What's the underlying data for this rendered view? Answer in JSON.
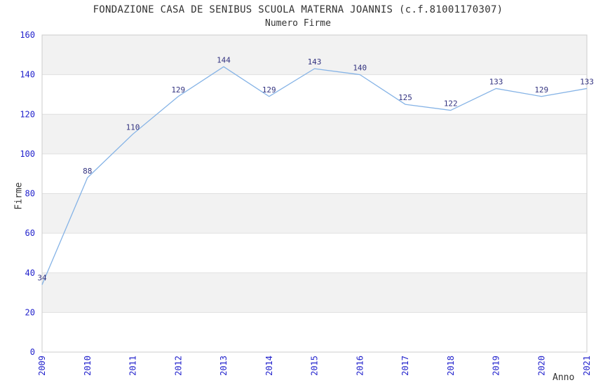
{
  "page": {
    "title": "FONDAZIONE CASA DE SENIBUS SCUOLA MATERNA JOANNIS (c.f.81001170307)",
    "subtitle": "Numero Firme"
  },
  "chart_data": {
    "type": "line",
    "title": "FONDAZIONE CASA DE SENIBUS SCUOLA MATERNA JOANNIS (c.f.81001170307)",
    "subtitle": "Numero Firme",
    "xlabel": "Anno",
    "ylabel": "Firme",
    "categories": [
      "2009",
      "2010",
      "2011",
      "2012",
      "2013",
      "2014",
      "2015",
      "2016",
      "2017",
      "2018",
      "2019",
      "2020",
      "2021"
    ],
    "values": [
      34,
      88,
      110,
      129,
      144,
      129,
      143,
      140,
      125,
      122,
      133,
      129,
      133
    ],
    "ylim": [
      0,
      160
    ],
    "ytick_step": 20,
    "yticks": [
      0,
      20,
      40,
      60,
      80,
      100,
      120,
      140,
      160
    ],
    "legend": "none",
    "grid": "alternating-horizontal-bands",
    "data_labels_shown": true,
    "x_tick_rotation_deg": 90,
    "colors": {
      "line": "#85b3e6",
      "tick_label": "#2222cc",
      "data_label": "#333380",
      "band": "#f2f2f2",
      "gridline": "#e0e0e0",
      "border": "#cccccc",
      "text": "#333333",
      "background": "#ffffff"
    }
  }
}
